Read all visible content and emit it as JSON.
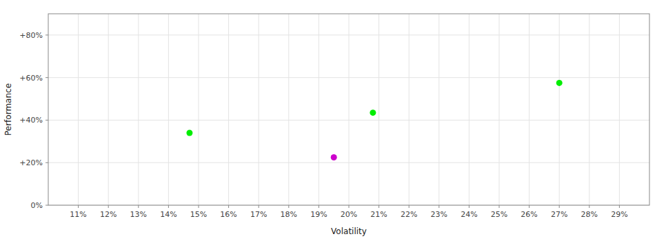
{
  "chart_data": {
    "type": "scatter",
    "xlabel": "Volatility",
    "ylabel": "Performance",
    "x": [
      0.147,
      0.195,
      0.208,
      0.27
    ],
    "values": [
      0.34,
      0.225,
      0.435,
      0.575
    ],
    "colors": [
      "#00ee00",
      "#cc00cc",
      "#00ee00",
      "#00ee00"
    ],
    "xlim": [
      0.1,
      0.3
    ],
    "ylim": [
      0.0,
      0.9
    ],
    "xticks": [
      {
        "value": 0.11,
        "label": "11%"
      },
      {
        "value": 0.12,
        "label": "12%"
      },
      {
        "value": 0.13,
        "label": "13%"
      },
      {
        "value": 0.14,
        "label": "14%"
      },
      {
        "value": 0.15,
        "label": "15%"
      },
      {
        "value": 0.16,
        "label": "16%"
      },
      {
        "value": 0.17,
        "label": "17%"
      },
      {
        "value": 0.18,
        "label": "18%"
      },
      {
        "value": 0.19,
        "label": "19%"
      },
      {
        "value": 0.2,
        "label": "20%"
      },
      {
        "value": 0.21,
        "label": "21%"
      },
      {
        "value": 0.22,
        "label": "22%"
      },
      {
        "value": 0.23,
        "label": "23%"
      },
      {
        "value": 0.24,
        "label": "24%"
      },
      {
        "value": 0.25,
        "label": "25%"
      },
      {
        "value": 0.26,
        "label": "26%"
      },
      {
        "value": 0.27,
        "label": "27%"
      },
      {
        "value": 0.28,
        "label": "28%"
      },
      {
        "value": 0.29,
        "label": "29%"
      }
    ],
    "yticks": [
      {
        "value": 0.0,
        "label": "0%"
      },
      {
        "value": 0.2,
        "label": "+20%"
      },
      {
        "value": 0.4,
        "label": "+40%"
      },
      {
        "value": 0.6,
        "label": "+60%"
      },
      {
        "value": 0.8,
        "label": "+80%"
      }
    ],
    "grid": true
  }
}
